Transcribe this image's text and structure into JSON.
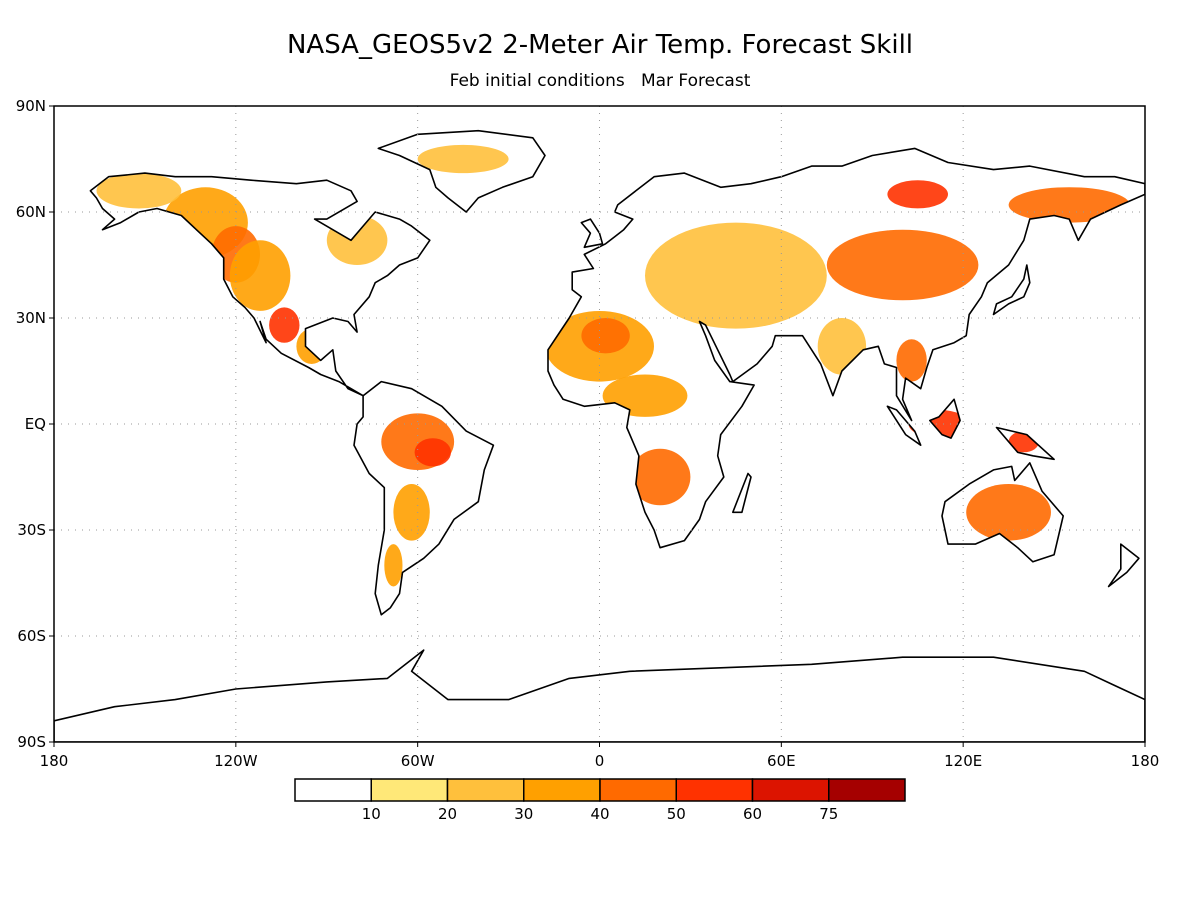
{
  "title": "NASA_GEOS5v2 2-Meter Air Temp. Forecast Skill",
  "subtitle": "Feb initial conditions   Mar Forecast",
  "map": {
    "lon_range": [
      -180,
      180
    ],
    "lat_range": [
      -90,
      90
    ],
    "grid": "dotted",
    "lat_ticks": [
      {
        "value": 90,
        "label": "90N"
      },
      {
        "value": 60,
        "label": "60N"
      },
      {
        "value": 30,
        "label": "30N"
      },
      {
        "value": 0,
        "label": "EQ"
      },
      {
        "value": -30,
        "label": "30S"
      },
      {
        "value": -60,
        "label": "60S"
      },
      {
        "value": -90,
        "label": "90S"
      }
    ],
    "lon_ticks": [
      {
        "value": -180,
        "label": "180"
      },
      {
        "value": -120,
        "label": "120W"
      },
      {
        "value": -60,
        "label": "60W"
      },
      {
        "value": 0,
        "label": "0"
      },
      {
        "value": 60,
        "label": "60E"
      },
      {
        "value": 120,
        "label": "120E"
      },
      {
        "value": 180,
        "label": "180"
      }
    ]
  },
  "colorbar": {
    "colors": [
      "#ffffff",
      "#ffe878",
      "#ffc03c",
      "#ffa000",
      "#ff6a00",
      "#ff3200",
      "#dc1400",
      "#a50000"
    ],
    "boundary_labels": [
      "10",
      "20",
      "30",
      "40",
      "50",
      "60",
      "75"
    ]
  },
  "land_color": "#ffffff",
  "coast_color": "#000000",
  "skill_regions": [
    {
      "level": 3,
      "lon": -130,
      "lat": 57,
      "rx": 14,
      "ry": 10
    },
    {
      "level": 4,
      "lon": -120,
      "lat": 48,
      "rx": 8,
      "ry": 8
    },
    {
      "level": 3,
      "lon": -112,
      "lat": 42,
      "rx": 10,
      "ry": 10
    },
    {
      "level": 5,
      "lon": -104,
      "lat": 28,
      "rx": 5,
      "ry": 5
    },
    {
      "level": 2,
      "lon": -152,
      "lat": 66,
      "rx": 14,
      "ry": 5
    },
    {
      "level": 2,
      "lon": -80,
      "lat": 52,
      "rx": 10,
      "ry": 7
    },
    {
      "level": 2,
      "lon": -45,
      "lat": 75,
      "rx": 15,
      "ry": 4
    },
    {
      "level": 3,
      "lon": -95,
      "lat": 22,
      "rx": 5,
      "ry": 5
    },
    {
      "level": 4,
      "lon": -60,
      "lat": -5,
      "rx": 12,
      "ry": 8
    },
    {
      "level": 5,
      "lon": -55,
      "lat": -8,
      "rx": 6,
      "ry": 4
    },
    {
      "level": 3,
      "lon": -62,
      "lat": -25,
      "rx": 6,
      "ry": 8
    },
    {
      "level": 3,
      "lon": -68,
      "lat": -40,
      "rx": 3,
      "ry": 6
    },
    {
      "level": 3,
      "lon": 0,
      "lat": 22,
      "rx": 18,
      "ry": 10
    },
    {
      "level": 4,
      "lon": 2,
      "lat": 25,
      "rx": 8,
      "ry": 5
    },
    {
      "level": 3,
      "lon": 15,
      "lat": 8,
      "rx": 14,
      "ry": 6
    },
    {
      "level": 4,
      "lon": 20,
      "lat": -15,
      "rx": 10,
      "ry": 8
    },
    {
      "level": 2,
      "lon": 45,
      "lat": 42,
      "rx": 30,
      "ry": 15
    },
    {
      "level": 4,
      "lon": 100,
      "lat": 45,
      "rx": 25,
      "ry": 10
    },
    {
      "level": 5,
      "lon": 105,
      "lat": 65,
      "rx": 10,
      "ry": 4
    },
    {
      "level": 4,
      "lon": 155,
      "lat": 62,
      "rx": 20,
      "ry": 5
    },
    {
      "level": 5,
      "lon": 112,
      "lat": 0,
      "rx": 10,
      "ry": 4
    },
    {
      "level": 5,
      "lon": 140,
      "lat": -5,
      "rx": 5,
      "ry": 3
    },
    {
      "level": 4,
      "lon": 135,
      "lat": -25,
      "rx": 14,
      "ry": 8
    },
    {
      "level": 2,
      "lon": 80,
      "lat": 22,
      "rx": 8,
      "ry": 8
    },
    {
      "level": 4,
      "lon": 103,
      "lat": 18,
      "rx": 5,
      "ry": 6
    }
  ]
}
